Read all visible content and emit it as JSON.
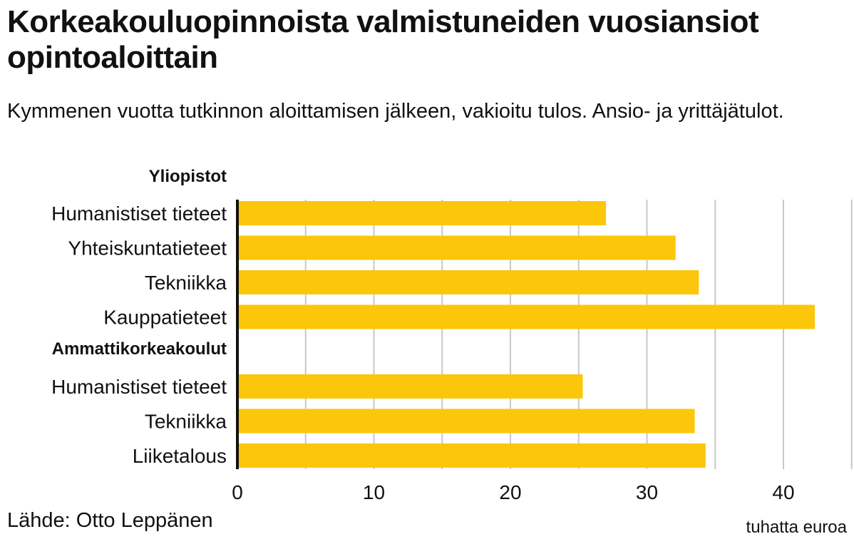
{
  "title": "Korkeakouluopinnoista valmistuneiden vuosiansiot opintoaloittain",
  "subtitle": "Kymmenen vuotta tutkinnon aloittamisen jälkeen, vakioitu tulos. Ansio- ja yrittäjätulot.",
  "source": "Lähde: Otto Leppänen",
  "colors": {
    "bar": "#fcc60a",
    "grid": "#c8c8c8",
    "axis": "#111111"
  },
  "chart_data": {
    "type": "bar",
    "orientation": "horizontal",
    "xlabel": "tuhatta euroa",
    "xlim": [
      0,
      45
    ],
    "xticks": [
      0,
      10,
      20,
      30,
      40
    ],
    "grid": true,
    "groups": [
      {
        "name": "Yliopistot",
        "categories": [
          "Humanistiset tieteet",
          "Yhteiskuntatieteet",
          "Tekniikka",
          "Kauppatieteet"
        ],
        "values": [
          27.0,
          32.1,
          33.8,
          42.3
        ]
      },
      {
        "name": "Ammattikorkeakoulut",
        "categories": [
          "Humanistiset tieteet",
          "Tekniikka",
          "Liiketalous"
        ],
        "values": [
          25.3,
          33.5,
          34.3
        ]
      }
    ]
  }
}
